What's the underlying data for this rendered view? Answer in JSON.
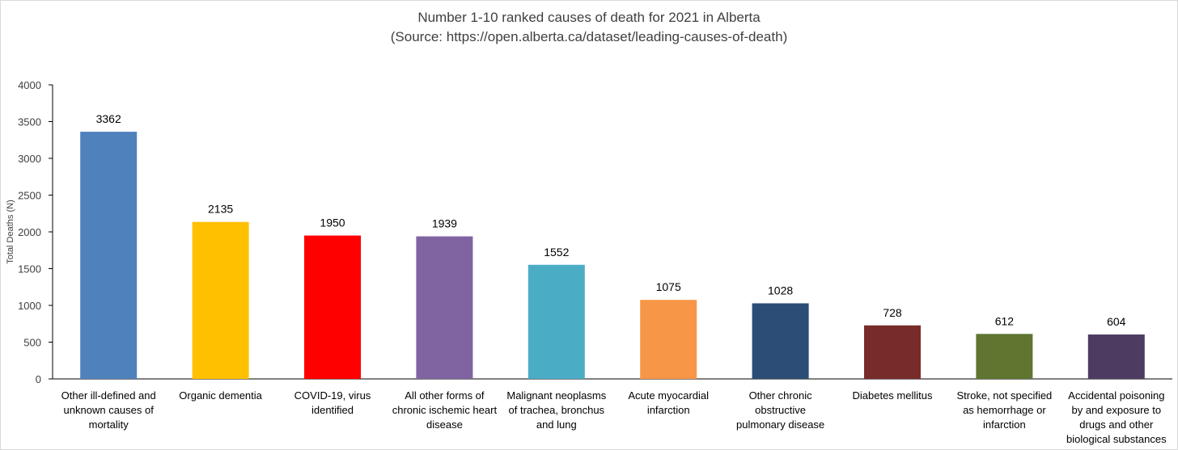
{
  "chart_data": {
    "type": "bar",
    "title": "Number 1-10 ranked causes of death for 2021 in Alberta",
    "subtitle": "(Source: https://open.alberta.ca/dataset/leading-causes-of-death)",
    "ylabel": "Total Deaths (N)",
    "xlabel": "",
    "ylim": [
      0,
      4000
    ],
    "yticks": [
      0,
      500,
      1000,
      1500,
      2000,
      2500,
      3000,
      3500,
      4000
    ],
    "grid": false,
    "legend": "none",
    "categories": [
      [
        "Other ill-defined and",
        "unknown causes of",
        "mortality"
      ],
      [
        "Organic dementia"
      ],
      [
        "COVID-19, virus",
        "identified"
      ],
      [
        "All other forms of",
        "chronic ischemic heart",
        "disease"
      ],
      [
        "Malignant neoplasms",
        "of trachea, bronchus",
        "and lung"
      ],
      [
        "Acute myocardial",
        "infarction"
      ],
      [
        "Other chronic",
        "obstructive",
        "pulmonary disease"
      ],
      [
        "Diabetes mellitus"
      ],
      [
        "Stroke, not specified",
        "as hemorrhage or",
        "infarction"
      ],
      [
        "Accidental poisoning",
        "by and exposure to",
        "drugs and other",
        "biological substances"
      ]
    ],
    "values": [
      3362,
      2135,
      1950,
      1939,
      1552,
      1075,
      1028,
      728,
      612,
      604
    ],
    "colors": [
      "#4f81bd",
      "#ffc000",
      "#ff0000",
      "#8064a2",
      "#4bacc6",
      "#f79646",
      "#2c4d75",
      "#772c2a",
      "#5f7530",
      "#4d3b62"
    ]
  }
}
